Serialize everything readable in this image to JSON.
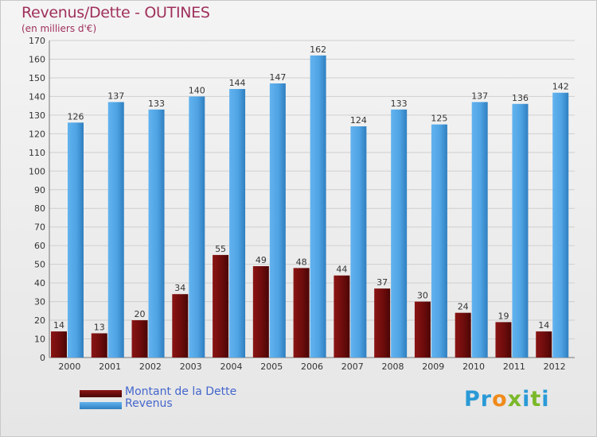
{
  "header": {
    "title": "Revenus/Dette - OUTINES",
    "subtitle": "(en milliers d'€)"
  },
  "legend": {
    "debt_label": "Montant de la Dette",
    "revenue_label": "Revenus"
  },
  "logo": {
    "text": "Proxiti",
    "letters": [
      "P",
      "r",
      "o",
      "x",
      "i",
      "t",
      "i"
    ],
    "colors": [
      "#2a9ad6",
      "#2a9ad6",
      "#f08a1a",
      "#7ab829",
      "#2a9ad6",
      "#7ab829",
      "#2a9ad6"
    ]
  },
  "colors": {
    "debt": "#6e0c0c",
    "revenue": "#4fa3e3",
    "axis_text": "#333333",
    "grid": "#cccccc"
  },
  "chart_data": {
    "type": "bar",
    "title": "Revenus/Dette - OUTINES",
    "subtitle": "(en milliers d'€)",
    "xlabel": "",
    "ylabel": "",
    "ylim": [
      0,
      170
    ],
    "yticks": [
      0,
      10,
      20,
      30,
      40,
      50,
      60,
      70,
      80,
      90,
      100,
      110,
      120,
      130,
      140,
      150,
      160,
      170
    ],
    "grid": true,
    "legend_position": "bottom-left",
    "categories": [
      "2000",
      "2001",
      "2002",
      "2003",
      "2004",
      "2005",
      "2006",
      "2007",
      "2008",
      "2009",
      "2010",
      "2011",
      "2012"
    ],
    "series": [
      {
        "name": "Montant de la Dette",
        "color": "#6e0c0c",
        "values": [
          14,
          13,
          20,
          34,
          55,
          49,
          48,
          44,
          37,
          30,
          24,
          19,
          14
        ]
      },
      {
        "name": "Revenus",
        "color": "#4fa3e3",
        "values": [
          126,
          137,
          133,
          140,
          144,
          147,
          162,
          124,
          133,
          125,
          137,
          136,
          142
        ]
      }
    ]
  }
}
